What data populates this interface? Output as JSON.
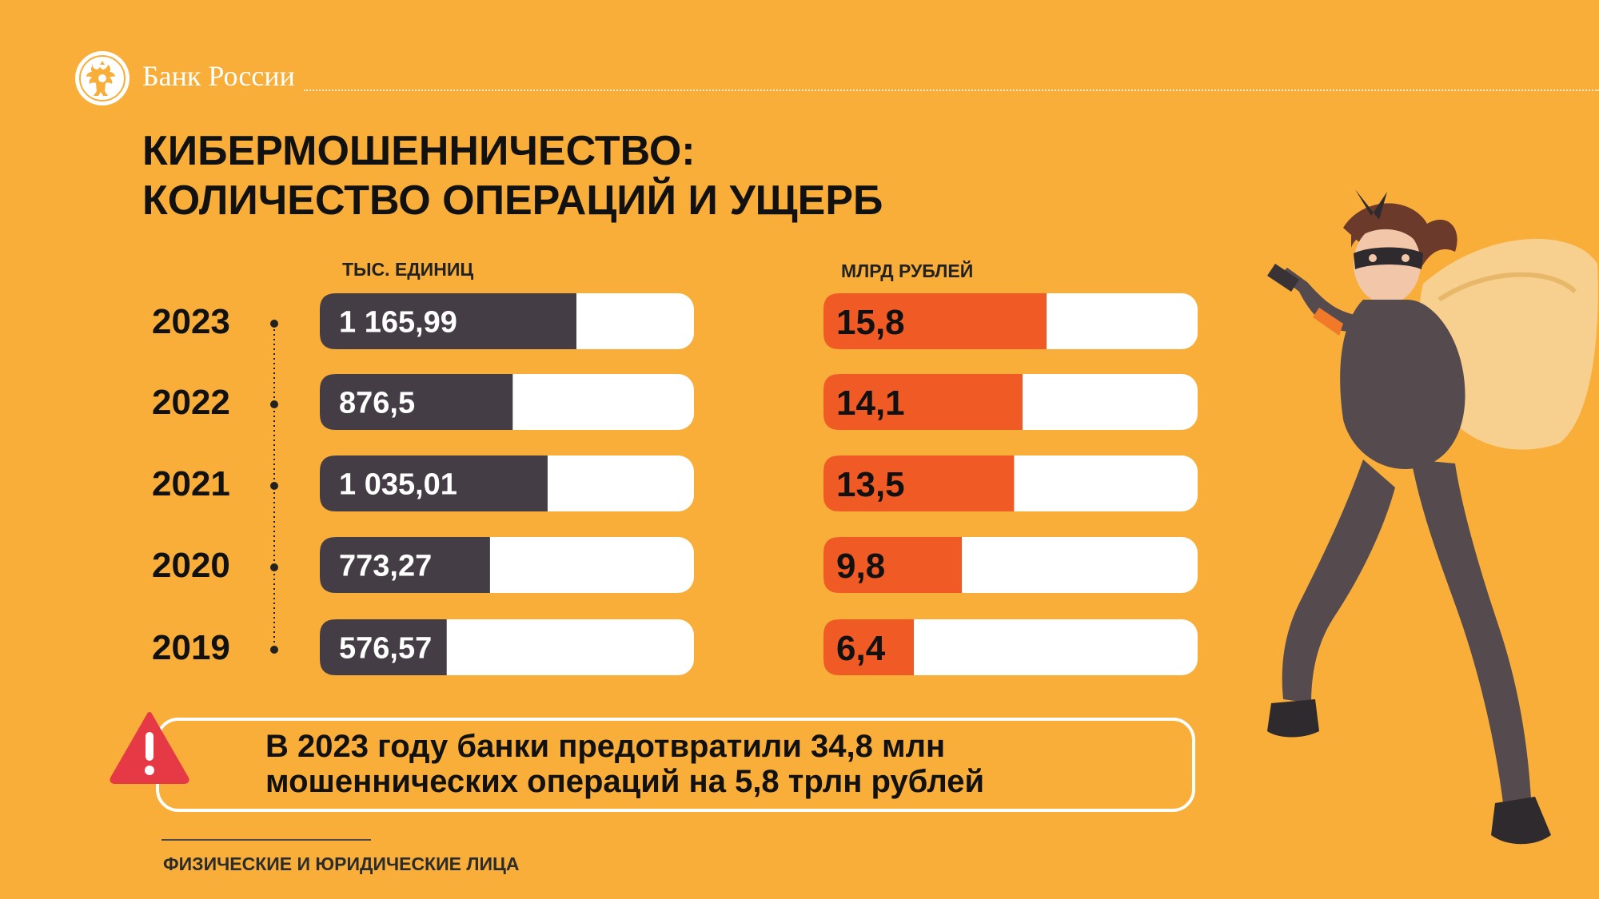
{
  "colors": {
    "background": "#F8AE39",
    "operations_bar": "#453D45",
    "damage_bar": "#F05A24",
    "track": "#FFFFFF",
    "warning": "#E63946"
  },
  "header": {
    "bank_name": "Банк России",
    "logo_icon": "double-headed-eagle-icon"
  },
  "title": {
    "line1": "КИБЕРМОШЕННИЧЕСТВО:",
    "line2": "КОЛИЧЕСТВО ОПЕРАЦИЙ И УЩЕРБ"
  },
  "chart_data": [
    {
      "type": "bar",
      "orientation": "horizontal",
      "unit": "ТЫС. ЕДИНИЦ",
      "categories": [
        "2023",
        "2022",
        "2021",
        "2020",
        "2019"
      ],
      "values": [
        1165.99,
        876.5,
        1035.01,
        773.27,
        576.57
      ],
      "value_labels": [
        "1 165,99",
        "876,5",
        "1 035,01",
        "773,27",
        "576,57"
      ],
      "xlim": [
        0,
        1700
      ],
      "color": "#453D45"
    },
    {
      "type": "bar",
      "orientation": "horizontal",
      "unit": "МЛРД РУБЛЕЙ",
      "categories": [
        "2023",
        "2022",
        "2021",
        "2020",
        "2019"
      ],
      "values": [
        15.8,
        14.1,
        13.5,
        9.8,
        6.4
      ],
      "value_labels": [
        "15,8",
        "14,1",
        "13,5",
        "9,8",
        "6,4"
      ],
      "xlim": [
        0,
        26.5
      ],
      "color": "#F05A24"
    }
  ],
  "alert": {
    "icon": "warning-icon",
    "line1": "В 2023 году банки предотвратили 34,8 млн",
    "line2": "мошеннических операций на 5,8 трлн рублей"
  },
  "footer": {
    "note": "ФИЗИЧЕСКИЕ И ЮРИДИЧЕСКИЕ ЛИЦА"
  },
  "illustration": {
    "icon": "masked-thief-with-sack-icon"
  }
}
